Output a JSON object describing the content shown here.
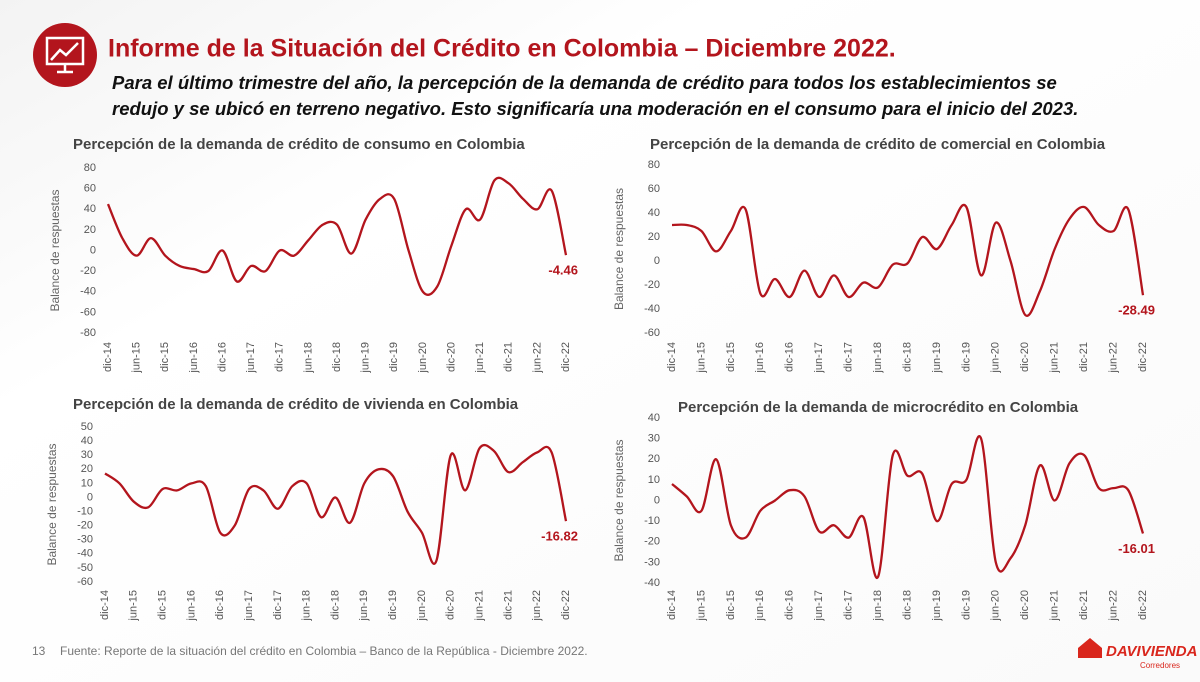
{
  "header": {
    "title": "Informe de la Situación del Crédito en Colombia – Diciembre 2022.",
    "subtitle_lines": [
      "Para el último trimestre del año, la percepción de la demanda de crédito para todos los establecimientos se",
      "redujo y se ubicó en terreno negativo. Esto significaría una moderación en el consumo para el inicio del 2023."
    ]
  },
  "footer": {
    "page": "13",
    "source": "Fuente: Reporte de la situación del crédito en Colombia – Banco de la República - Diciembre 2022.",
    "logo": "DAVIVIENDA",
    "logo_sub": "Corredores"
  },
  "chart_data": [
    {
      "type": "line",
      "title": "Percepción de la demanda de crédito de consumo en Colombia",
      "y_label": "Balance de respuestas",
      "color": "#b3151d",
      "categories": [
        "dic-14",
        null,
        "jun-15",
        null,
        "dic-15",
        null,
        "jun-16",
        null,
        "dic-16",
        null,
        "jun-17",
        null,
        "dic-17",
        null,
        "jun-18",
        null,
        "dic-18",
        null,
        "jun-19",
        null,
        "dic-19",
        null,
        "jun-20",
        null,
        "dic-20",
        null,
        "jun-21",
        null,
        "dic-21",
        null,
        "jun-22",
        null,
        "dic-22"
      ],
      "values": [
        45,
        12,
        -5,
        12,
        -5,
        -15,
        -18,
        -20,
        0,
        -30,
        -15,
        -20,
        0,
        -5,
        10,
        25,
        25,
        -3,
        30,
        50,
        50,
        0,
        -40,
        -35,
        5,
        40,
        30,
        68,
        65,
        50,
        40,
        58,
        -4.46
      ],
      "ylim": [
        -80,
        80
      ],
      "yticks": [
        -80,
        -60,
        -40,
        -20,
        0,
        20,
        40,
        60,
        80
      ]
    },
    {
      "type": "line",
      "title": "Percepción de la demanda de crédito de comercial en Colombia",
      "y_label": "Balance de respuestas",
      "color": "#b3151d",
      "categories": [
        "dic-14",
        null,
        "jun-15",
        null,
        "dic-15",
        null,
        "jun-16",
        null,
        "dic-16",
        null,
        "jun-17",
        null,
        "dic-17",
        null,
        "jun-18",
        null,
        "dic-18",
        null,
        "jun-19",
        null,
        "dic-19",
        null,
        "jun-20",
        null,
        "dic-20",
        null,
        "jun-21",
        null,
        "dic-21",
        null,
        "jun-22",
        null,
        "dic-22"
      ],
      "values": [
        30,
        30,
        25,
        8,
        25,
        43,
        -27,
        -15,
        -30,
        -8,
        -30,
        -12,
        -30,
        -18,
        -22,
        -3,
        -2,
        20,
        10,
        30,
        45,
        -12,
        32,
        0,
        -45,
        -25,
        10,
        35,
        45,
        30,
        25,
        43,
        -28.49
      ],
      "ylim": [
        -60,
        80
      ],
      "yticks": [
        -60,
        -40,
        -20,
        0,
        20,
        40,
        60,
        80
      ]
    },
    {
      "type": "line",
      "title": "Percepción de la demanda de crédito de vivienda en Colombia",
      "y_label": "Balance de respuestas",
      "color": "#b3151d",
      "categories": [
        "dic-14",
        null,
        "jun-15",
        null,
        "dic-15",
        null,
        "jun-16",
        null,
        "dic-16",
        null,
        "jun-17",
        null,
        "dic-17",
        null,
        "jun-18",
        null,
        "dic-18",
        null,
        "jun-19",
        null,
        "dic-19",
        null,
        "jun-20",
        null,
        "dic-20",
        null,
        "jun-21",
        null,
        "dic-21",
        null,
        "jun-22",
        null,
        "dic-22"
      ],
      "values": [
        17,
        10,
        -3,
        -7,
        6,
        5,
        10,
        8,
        -25,
        -20,
        6,
        5,
        -8,
        8,
        10,
        -14,
        0,
        -18,
        10,
        20,
        15,
        -10,
        -25,
        -45,
        30,
        5,
        35,
        33,
        18,
        25,
        32,
        32,
        -16.82
      ],
      "ylim": [
        -60,
        50
      ],
      "yticks": [
        -60,
        -50,
        -40,
        -30,
        -20,
        -10,
        0,
        10,
        20,
        30,
        40,
        50
      ]
    },
    {
      "type": "line",
      "title": "Percepción de la demanda de microcrédito en Colombia",
      "y_label": "Balance de respuestas",
      "color": "#b3151d",
      "categories": [
        "dic-14",
        null,
        "jun-15",
        null,
        "dic-15",
        null,
        "jun-16",
        null,
        "dic-16",
        null,
        "jun-17",
        null,
        "dic-17",
        null,
        "jun-18",
        null,
        "dic-18",
        null,
        "jun-19",
        null,
        "dic-19",
        null,
        "jun-20",
        null,
        "dic-20",
        null,
        "jun-21",
        null,
        "dic-21",
        null,
        "jun-22",
        null,
        "dic-22"
      ],
      "values": [
        8,
        2,
        -5,
        20,
        -12,
        -18,
        -5,
        0,
        5,
        2,
        -15,
        -12,
        -18,
        -8,
        -37,
        22,
        12,
        13,
        -10,
        8,
        10,
        30,
        -30,
        -28,
        -12,
        17,
        0,
        18,
        22,
        6,
        6,
        5,
        -16.01
      ],
      "ylim": [
        -40,
        40
      ],
      "yticks": [
        -40,
        -30,
        -20,
        -10,
        0,
        10,
        20,
        30,
        40
      ]
    }
  ]
}
